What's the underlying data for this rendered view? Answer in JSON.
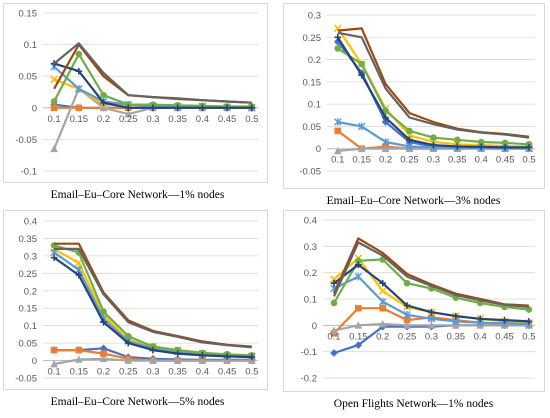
{
  "captions": [
    "Email–Eu–Core Network—1% nodes",
    "Email–Eu–Core Network—3% nodes",
    "Email–Eu–Core Network—5% nodes",
    "Open Flights Network—1% nodes"
  ],
  "series_styles": [
    {
      "color": "#4472c4",
      "marker": "diamond"
    },
    {
      "color": "#ed7d31",
      "marker": "square"
    },
    {
      "color": "#a5a5a5",
      "marker": "triangle"
    },
    {
      "color": "#ffc000",
      "marker": "x"
    },
    {
      "color": "#5b9bd5",
      "marker": "star"
    },
    {
      "color": "#70ad47",
      "marker": "circle"
    },
    {
      "color": "#264478",
      "marker": "plus"
    },
    {
      "color": "#9e480e",
      "marker": "none"
    },
    {
      "color": "#636363",
      "marker": "none"
    }
  ],
  "chart_data": [
    {
      "type": "line",
      "x": [
        "0.1",
        "0.15",
        "0.2",
        "0.25",
        "0.3",
        "0.35",
        "0.4",
        "0.45",
        "0.5"
      ],
      "ylim": [
        -0.1,
        0.15
      ],
      "yticks": [
        "0.15",
        "0.1",
        "0.05",
        "0",
        "-0.05",
        "-0.1"
      ],
      "ytick_values": [
        0.15,
        0.1,
        0.05,
        0,
        -0.05,
        -0.1
      ],
      "series": [
        {
          "values": [
            0.005,
            0.0,
            0.0,
            0.0,
            0.0,
            0.0,
            0.0,
            0.0,
            0.0
          ]
        },
        {
          "values": [
            0.0,
            0.0,
            0.0,
            0.0,
            0.0,
            0.0,
            0.0,
            0.0,
            0.0
          ]
        },
        {
          "values": [
            -0.065,
            0.03,
            0.0,
            -0.01,
            0.0,
            0.0,
            0.0,
            0.0,
            0.0
          ]
        },
        {
          "values": [
            0.045,
            0.03,
            0.005,
            0.005,
            0.003,
            0.002,
            0.002,
            0.001,
            0.0
          ]
        },
        {
          "values": [
            0.065,
            0.03,
            0.01,
            0.005,
            0.003,
            0.002,
            0.002,
            0.001,
            0.0
          ]
        },
        {
          "values": [
            0.01,
            0.085,
            0.02,
            0.005,
            0.005,
            0.004,
            0.003,
            0.002,
            0.002
          ]
        },
        {
          "values": [
            0.07,
            0.058,
            0.008,
            0.0,
            0.0,
            0.0,
            0.0,
            0.0,
            0.0
          ]
        },
        {
          "values": [
            0.03,
            0.1,
            0.05,
            0.02,
            0.017,
            0.015,
            0.012,
            0.01,
            0.008
          ]
        },
        {
          "values": [
            0.07,
            0.102,
            0.055,
            0.02,
            0.017,
            0.014,
            0.012,
            0.01,
            0.008
          ]
        }
      ]
    },
    {
      "type": "line",
      "x": [
        "0.1",
        "0.15",
        "0.2",
        "0.25",
        "0.3",
        "0.35",
        "0.4",
        "0.45",
        "0.5"
      ],
      "ylim": [
        -0.05,
        0.3
      ],
      "yticks": [
        "0.3",
        "0.25",
        "0.2",
        "0.15",
        "0.1",
        "0.05",
        "0",
        "-0.05"
      ],
      "ytick_values": [
        0.3,
        0.25,
        0.2,
        0.15,
        0.1,
        0.05,
        0,
        -0.05
      ],
      "series": [
        {
          "values": [
            0.24,
            0.17,
            0.06,
            0.015,
            0.005,
            0.003,
            0.002,
            0.002,
            0.002
          ]
        },
        {
          "values": [
            0.04,
            0.0,
            0.005,
            0.0,
            0.0,
            0.0,
            0.0,
            0.0,
            0.0
          ]
        },
        {
          "values": [
            -0.005,
            0.0,
            0.0,
            0.0,
            0.0,
            0.0,
            0.0,
            0.0,
            0.0
          ]
        },
        {
          "values": [
            0.27,
            0.19,
            0.09,
            0.03,
            0.015,
            0.01,
            0.008,
            0.006,
            0.005
          ]
        },
        {
          "values": [
            0.06,
            0.05,
            0.015,
            0.005,
            0.003,
            0.002,
            0.002,
            0.001,
            0.001
          ]
        },
        {
          "values": [
            0.225,
            0.19,
            0.085,
            0.04,
            0.025,
            0.02,
            0.015,
            0.013,
            0.01
          ]
        },
        {
          "values": [
            0.25,
            0.165,
            0.07,
            0.02,
            0.008,
            0.005,
            0.004,
            0.003,
            0.003
          ]
        },
        {
          "values": [
            0.265,
            0.27,
            0.145,
            0.08,
            0.06,
            0.045,
            0.037,
            0.033,
            0.027
          ]
        },
        {
          "values": [
            0.26,
            0.25,
            0.135,
            0.07,
            0.055,
            0.043,
            0.036,
            0.032,
            0.025
          ]
        }
      ]
    },
    {
      "type": "line",
      "x": [
        "0.1",
        "0.15",
        "0.2",
        "0.25",
        "0.3",
        "0.35",
        "0.4",
        "0.45",
        "0.5"
      ],
      "ylim": [
        -0.05,
        0.4
      ],
      "yticks": [
        "0.4",
        "0.35",
        "0.3",
        "0.25",
        "0.2",
        "0.15",
        "0.1",
        "0.05",
        "0",
        "-0.05"
      ],
      "ytick_values": [
        0.4,
        0.35,
        0.3,
        0.25,
        0.2,
        0.15,
        0.1,
        0.05,
        0,
        -0.05
      ],
      "series": [
        {
          "values": [
            0.03,
            0.03,
            0.035,
            0.01,
            0.005,
            0.003,
            0.002,
            0.002,
            0.002
          ]
        },
        {
          "values": [
            0.03,
            0.03,
            0.02,
            0.005,
            0.0,
            0.0,
            0.0,
            0.0,
            0.0
          ]
        },
        {
          "values": [
            -0.01,
            0.003,
            0.005,
            0.0,
            0.0,
            0.0,
            0.0,
            0.0,
            0.0
          ]
        },
        {
          "values": [
            0.32,
            0.28,
            0.13,
            0.06,
            0.04,
            0.03,
            0.02,
            0.015,
            0.012
          ]
        },
        {
          "values": [
            0.31,
            0.26,
            0.12,
            0.055,
            0.035,
            0.025,
            0.018,
            0.014,
            0.012
          ]
        },
        {
          "values": [
            0.33,
            0.31,
            0.14,
            0.07,
            0.04,
            0.03,
            0.022,
            0.018,
            0.015
          ]
        },
        {
          "values": [
            0.295,
            0.245,
            0.11,
            0.05,
            0.03,
            0.02,
            0.015,
            0.012,
            0.01
          ]
        },
        {
          "values": [
            0.335,
            0.335,
            0.195,
            0.115,
            0.085,
            0.07,
            0.055,
            0.045,
            0.04
          ]
        },
        {
          "values": [
            0.32,
            0.32,
            0.19,
            0.11,
            0.082,
            0.068,
            0.052,
            0.044,
            0.038
          ]
        }
      ]
    },
    {
      "type": "line",
      "x": [
        "0.1",
        "0.15",
        "0.2",
        "0.25",
        "0.3",
        "0.35",
        "0.4",
        "0.45",
        "0.5"
      ],
      "ylim": [
        -0.2,
        0.4
      ],
      "yticks": [
        "0.4",
        "0.3",
        "0.2",
        "0.1",
        "0",
        "-0.1",
        "-0.2"
      ],
      "ytick_values": [
        0.4,
        0.3,
        0.2,
        0.1,
        0,
        -0.1,
        -0.2
      ],
      "series": [
        {
          "values": [
            -0.105,
            -0.075,
            -0.005,
            -0.005,
            -0.005,
            0.0,
            0.0,
            0.0,
            0.0
          ]
        },
        {
          "values": [
            -0.03,
            0.065,
            0.065,
            0.02,
            0.03,
            0.02,
            0.01,
            0.005,
            0.0
          ]
        },
        {
          "values": [
            -0.02,
            0.0,
            0.005,
            0.0,
            0.0,
            0.0,
            0.0,
            0.0,
            0.0
          ]
        },
        {
          "values": [
            0.175,
            0.255,
            0.13,
            0.07,
            0.05,
            0.035,
            0.025,
            0.015,
            0.01
          ]
        },
        {
          "values": [
            0.14,
            0.185,
            0.09,
            0.04,
            0.025,
            0.015,
            0.01,
            0.008,
            0.005
          ]
        },
        {
          "values": [
            0.085,
            0.245,
            0.25,
            0.16,
            0.14,
            0.105,
            0.085,
            0.07,
            0.06
          ]
        },
        {
          "values": [
            0.16,
            0.23,
            0.16,
            0.075,
            0.05,
            0.035,
            0.025,
            0.02,
            0.015
          ]
        },
        {
          "values": [
            0.12,
            0.33,
            0.275,
            0.195,
            0.155,
            0.12,
            0.1,
            0.08,
            0.075
          ]
        },
        {
          "values": [
            0.11,
            0.315,
            0.265,
            0.185,
            0.15,
            0.115,
            0.095,
            0.078,
            0.07
          ]
        }
      ]
    }
  ]
}
